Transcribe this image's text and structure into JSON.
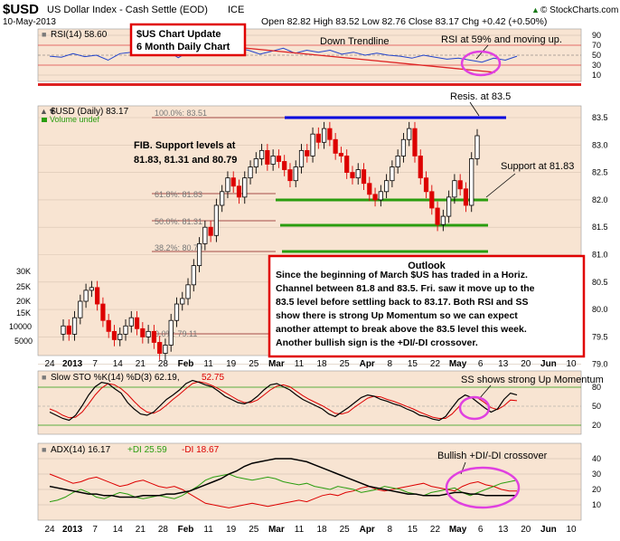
{
  "header": {
    "symbol": "$USD",
    "name": "US Dollar Index - Cash Settle (EOD)",
    "exchange": "ICE",
    "date": "10-May-2013",
    "ohlc": "Open 82.82  High 83.52  Low 82.76  Close 83.17  Chg +0.42 (+0.50%)",
    "up_arrow": "▲",
    "credit": "© StockCharts.com"
  },
  "rsi_panel": {
    "label": "RSI(14) 58.60",
    "ticks": [
      "90",
      "70",
      "50",
      "30",
      "10"
    ],
    "values": [
      58,
      56,
      63,
      57,
      60,
      50,
      63,
      66,
      60,
      62,
      70,
      55,
      68,
      65,
      72,
      66,
      74,
      70,
      62,
      68,
      74,
      64,
      70,
      66,
      70,
      62,
      66,
      60,
      64,
      60,
      58,
      54,
      60,
      56,
      52,
      54,
      50,
      46,
      54,
      50,
      58
    ]
  },
  "price_panel": {
    "label": "$USD (Daily) 83.17",
    "volume_label": "Volume undef",
    "y_ticks": [
      "83.5",
      "83.0",
      "82.5",
      "82.0",
      "81.5",
      "81.0",
      "80.5",
      "80.0",
      "79.5",
      "79.0"
    ],
    "vol_ticks": [
      "30K",
      "25K",
      "20K",
      "15K",
      "10000",
      "5000"
    ],
    "fib_labels": [
      "100.0%: 83.51",
      "61.8%: 81.83",
      "50.0%: 81.31",
      "38.2%: 80.79",
      "0.0%: 79.11"
    ],
    "close": [
      79.7,
      79.55,
      79.85,
      80.15,
      80.35,
      80.4,
      80.1,
      79.8,
      79.6,
      79.45,
      79.55,
      79.7,
      79.85,
      79.65,
      79.5,
      79.6,
      79.4,
      79.2,
      79.35,
      79.8,
      80.1,
      80.2,
      80.45,
      80.8,
      81.2,
      81.5,
      81.35,
      81.9,
      82.15,
      82.4,
      82.25,
      82.05,
      82.4,
      82.6,
      82.75,
      82.9,
      82.65,
      82.8,
      82.7,
      82.55,
      82.35,
      82.6,
      82.9,
      82.8,
      83.2,
      83.05,
      83.3,
      83.1,
      82.85,
      82.8,
      82.5,
      82.4,
      82.55,
      82.3,
      82.1,
      82.0,
      82.15,
      82.35,
      82.6,
      82.8,
      83.1,
      83.3,
      82.8,
      82.4,
      82.15,
      81.85,
      81.55,
      81.7,
      82.05,
      82.35,
      82.2,
      81.9,
      82.75,
      83.17
    ]
  },
  "annotations": {
    "title_box": [
      "$US Chart Update",
      "6 Month Daily Chart"
    ],
    "down_trendline": "Down Trendline",
    "rsi_note": "RSI at 59% and moving up.",
    "resistance": "Resis. at 83.5",
    "support": "Support at 81.83",
    "fib_note": [
      "FIB. Support levels at",
      "81.83,  81.31 and 80.79"
    ],
    "outlook_title": "Outlook",
    "outlook_lines": [
      "Since the beginning of March $US has traded in a Horiz.",
      "Channel between 81.8 and 83.5. Fri. saw it move up to the",
      "83.5 level before settling back to 83.17. Both RSI and SS",
      "show there is strong Up Momentum so we can expect",
      "another attempt to break above the 83.5 level this week.",
      "Another bullish sign is the +DI/-DI crossover."
    ],
    "ss_note": "SS shows strong Up Momentum",
    "adx_note": "Bullish +DI/-DI crossover"
  },
  "sto_panel": {
    "label": "Slow STO %K(14) %D(3) 62.19,",
    "d_value": "52.75",
    "ticks": [
      "80",
      "50",
      "20"
    ],
    "k": [
      35,
      30,
      25,
      22,
      30,
      45,
      62,
      75,
      82,
      80,
      72,
      65,
      50,
      40,
      32,
      30,
      35,
      45,
      55,
      62,
      70,
      80,
      85,
      82,
      78,
      75,
      68,
      60,
      55,
      50,
      48,
      52,
      60,
      70,
      78,
      80,
      75,
      70,
      62,
      55,
      50,
      45,
      40,
      32,
      28,
      35,
      42,
      50,
      58,
      62,
      60,
      55,
      52,
      48,
      45,
      40,
      36,
      30,
      28,
      24,
      22,
      28,
      42,
      55,
      62,
      58,
      50,
      42,
      35,
      40,
      55,
      65,
      62
    ],
    "d": [
      40,
      36,
      30,
      26,
      27,
      35,
      48,
      62,
      73,
      80,
      78,
      72,
      63,
      52,
      42,
      35,
      33,
      38,
      46,
      55,
      63,
      72,
      80,
      83,
      81,
      77,
      72,
      66,
      60,
      54,
      50,
      50,
      54,
      62,
      70,
      76,
      78,
      75,
      68,
      61,
      55,
      50,
      45,
      39,
      33,
      32,
      35,
      43,
      50,
      57,
      60,
      59,
      55,
      52,
      48,
      44,
      40,
      35,
      31,
      27,
      25,
      25,
      32,
      43,
      54,
      58,
      57,
      50,
      42,
      39,
      45,
      54,
      53
    ]
  },
  "adx_panel": {
    "label_adx": "ADX(14) 16.17",
    "label_pdi": "+DI 25.59",
    "label_mdi": "-DI 18.67",
    "ticks": [
      "40",
      "30",
      "20",
      "10"
    ],
    "adx": [
      22,
      21,
      20,
      19,
      18,
      17,
      17,
      16,
      16,
      15,
      15,
      15,
      16,
      16,
      16,
      17,
      17,
      18,
      19,
      21,
      23,
      25,
      27,
      30,
      32,
      35,
      37,
      38,
      39,
      40,
      40,
      40,
      39,
      38,
      36,
      34,
      32,
      30,
      28,
      26,
      24,
      22,
      21,
      20,
      19,
      18,
      17,
      17,
      16,
      16,
      16,
      17,
      18,
      18,
      17,
      17,
      16,
      16,
      16,
      16,
      16
    ],
    "plus_di": [
      12,
      13,
      15,
      18,
      20,
      18,
      15,
      14,
      16,
      18,
      17,
      15,
      14,
      15,
      16,
      15,
      14,
      16,
      19,
      22,
      26,
      28,
      29,
      30,
      28,
      27,
      26,
      27,
      28,
      27,
      25,
      24,
      23,
      24,
      22,
      21,
      20,
      22,
      21,
      20,
      18,
      19,
      20,
      22,
      21,
      20,
      18,
      17,
      16,
      18,
      19,
      20,
      21,
      18,
      16,
      18,
      20,
      22,
      24,
      25,
      26
    ],
    "minus_di": [
      30,
      28,
      26,
      24,
      25,
      27,
      28,
      26,
      24,
      22,
      23,
      25,
      26,
      24,
      22,
      21,
      22,
      20,
      17,
      14,
      11,
      10,
      9,
      8,
      9,
      10,
      11,
      10,
      9,
      10,
      11,
      12,
      13,
      12,
      14,
      16,
      17,
      16,
      18,
      19,
      21,
      22,
      20,
      19,
      20,
      21,
      22,
      23,
      24,
      22,
      21,
      20,
      19,
      22,
      24,
      25,
      23,
      22,
      20,
      19,
      19
    ]
  },
  "x_axis": {
    "labels": [
      "24",
      "2013",
      "7",
      "14",
      "21",
      "28",
      "Feb",
      "11",
      "19",
      "25",
      "Mar",
      "11",
      "18",
      "25",
      "Apr",
      "8",
      "15",
      "22",
      "May",
      "6",
      "13",
      "20",
      "Jun",
      "10"
    ]
  },
  "colors": {
    "panel_bg": "#f8e4d2",
    "resistance": "#0000dd",
    "support": "#2a9d0f",
    "box_border": "#e00000",
    "up_candle": "#000000",
    "down_candle": "#dd0000"
  }
}
